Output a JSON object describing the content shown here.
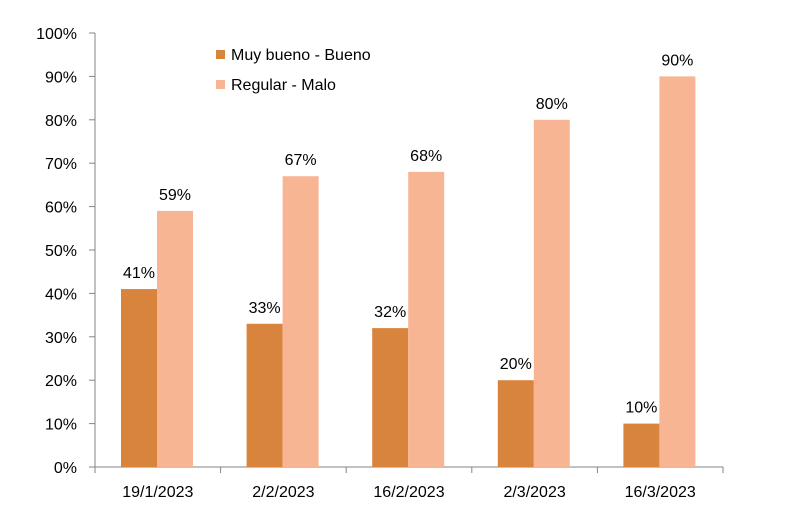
{
  "chart_data": {
    "type": "bar",
    "categories": [
      "19/1/2023",
      "2/2/2023",
      "16/2/2023",
      "2/3/2023",
      "16/3/2023"
    ],
    "series": [
      {
        "name": "Muy bueno - Bueno",
        "values": [
          41,
          33,
          32,
          20,
          10
        ],
        "color": "#D9843C"
      },
      {
        "name": "Regular - Malo",
        "values": [
          59,
          67,
          68,
          80,
          90
        ],
        "color": "#F8B593"
      }
    ],
    "data_labels": [
      [
        "41%",
        "33%",
        "32%",
        "20%",
        "10%"
      ],
      [
        "59%",
        "67%",
        "68%",
        "80%",
        "90%"
      ]
    ],
    "y_ticks": [
      "0%",
      "10%",
      "20%",
      "30%",
      "40%",
      "50%",
      "60%",
      "70%",
      "80%",
      "90%",
      "100%"
    ],
    "ylim": [
      0,
      100
    ],
    "y_unit": "percent",
    "grid": false,
    "legend_position": "top-left",
    "title": "",
    "xlabel": "",
    "ylabel": ""
  }
}
